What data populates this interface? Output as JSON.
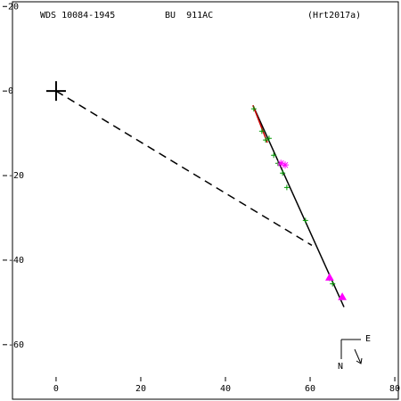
{
  "chart_data": {
    "type": "scatter",
    "labels": [
      "WDS 10084-1945",
      "BU  911AC",
      "(Hrt2017a)"
    ],
    "compass": {
      "east": "E",
      "north": "N"
    },
    "xlim": [
      -10.3,
      80.2
    ],
    "xticks": [
      0,
      20,
      40,
      60,
      80
    ],
    "ylim": [
      -72.9,
      20.9
    ],
    "yticks": [
      20,
      0,
      -20,
      -40,
      -60
    ],
    "series": [
      {
        "marker": "dashed",
        "color": "#000000",
        "x": [
          0,
          60.4
        ],
        "y": [
          0,
          -36.5
        ]
      },
      {
        "marker": "line",
        "color": "#000000",
        "x": [
          46.5,
          68
        ],
        "y": [
          -3.4,
          -51.1
        ]
      },
      {
        "marker": "line",
        "color": "#cc0000",
        "x": [
          46.5,
          49.9
        ],
        "y": [
          -3.4,
          -12.2
        ]
      },
      {
        "marker": "plus",
        "color": "#009900",
        "x": [
          46.7,
          48.6,
          49.5,
          50.3,
          51.4,
          52.4,
          53.5,
          54.5,
          58.9,
          64.6,
          65.3
        ],
        "y": [
          -4.2,
          -9.5,
          -11.6,
          -11.2,
          -15.2,
          -17.1,
          -19.4,
          -22.8,
          -30.6,
          -44.3,
          -45.6
        ]
      },
      {
        "marker": "asterisk",
        "color": "#ff00ff",
        "x": [
          53.1,
          54.1
        ],
        "y": [
          -17.1,
          -17.5
        ]
      },
      {
        "marker": "triangle",
        "color": "#ff00ff",
        "x": [
          64.6,
          67.6
        ],
        "y": [
          -44.1,
          -48.7
        ]
      },
      {
        "marker": "bigcross",
        "color": "#000000",
        "x": [
          0
        ],
        "y": [
          0
        ]
      }
    ]
  }
}
